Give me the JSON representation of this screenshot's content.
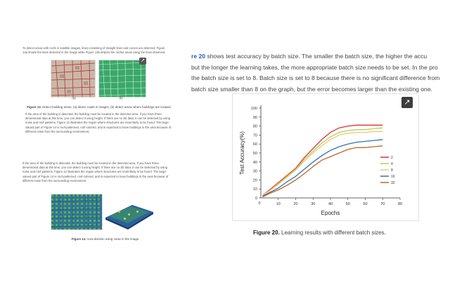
{
  "left_page": {
    "intro_lines": [
      "To detect areas with roofs in satellite images, lines consisting of straight lines and curves are detected. Figure",
      "13a shows the lines detected in the image while Figure 13b depicts the roofed areas using the lines observed."
    ],
    "fig13_sub_a": "(a)",
    "fig13_sub_b": "(b)",
    "fig13_caption_label": "Figure 13.",
    "fig13_caption_text": "Detect building areas: (a) detect roads in images; (b) detect areas where buildings are located.",
    "para1_lines": [
      "If the area of the building is detected, the building must be located in the detected area. If you have three-",
      "dimensional data at this time, you can detect it using height. If there are no 3D data, it can be detected by using",
      "noise and roof patterns. Figure 13 illustrates the region where structures are most likely to be found. The large-",
      "valued part of Figure 14 is roof-patterned, roof-colored, and is expected to have buildings in the area because of",
      "different noise from the surrounding environment."
    ],
    "para2_lines": [
      "If the area of the building is detected, the building must be located in the detected area. If you have three-",
      "dimensional data at this time, you can detect it using height. If there are no 3D data, it can be detected by using",
      "noise and roof patterns. Figure 13 illustrates the region where structures are most likely to be found. The large-",
      "valued part of Figure 14 is roof-patterned, roof-colored, and is expected to have buildings in the area because of",
      "different noise from the surrounding environment."
    ],
    "fig14_caption_label": "Figure 14.",
    "fig14_caption_text": "Area division using noise in the image."
  },
  "article": {
    "lines": [
      {
        "ref": "re 20",
        "text": " shows test accuracy by batch size. The smaller the batch size, the higher the accu"
      },
      {
        "ref": "",
        "text": "but the longer the learning takes, the more appropriate batch size needs to be set. In the pro"
      },
      {
        "ref": "",
        "text": " the batch size is set to 8. Batch size is set to 8 because there is no significant difference from"
      },
      {
        "ref": "",
        "text": "batch size smaller than 8 on the graph, but the error becomes larger than the existing one."
      }
    ],
    "figure_caption_label": "Figure 20.",
    "figure_caption_text": " Learning results with different batch sizes."
  },
  "chart_data": {
    "type": "line",
    "title": "",
    "xlabel": "Epochs",
    "ylabel": "Test Accuracy(%)",
    "xlim": [
      0,
      80
    ],
    "ylim": [
      0,
      100
    ],
    "xticks": [
      10,
      20,
      30,
      40,
      50,
      60,
      70,
      80
    ],
    "yticks": [
      0,
      10,
      20,
      30,
      40,
      50,
      60,
      70,
      80,
      90,
      100
    ],
    "grid": false,
    "legend_position": "lower-right",
    "x": [
      1,
      5,
      10,
      15,
      20,
      25,
      30,
      35,
      40,
      45,
      50,
      55,
      60,
      65,
      70
    ],
    "series": [
      {
        "name": "2",
        "color": "#e03030",
        "values": [
          3,
          9,
          17,
          25,
          33,
          45,
          55,
          65,
          73,
          78,
          80,
          81,
          81,
          81,
          81
        ]
      },
      {
        "name": "4",
        "color": "#b0d060",
        "values": [
          3,
          8,
          16,
          24,
          32,
          43,
          52,
          61,
          68,
          73,
          75,
          76,
          76,
          77,
          78
        ]
      },
      {
        "name": "8",
        "color": "#f0c870",
        "values": [
          3,
          8,
          15,
          23,
          31,
          41,
          50,
          58,
          65,
          70,
          72,
          73,
          73,
          74,
          74
        ]
      },
      {
        "name": "16",
        "color": "#3070c0",
        "values": [
          2,
          6,
          11,
          18,
          24,
          32,
          40,
          47,
          53,
          57,
          60,
          62,
          63,
          64,
          65
        ]
      },
      {
        "name": "32",
        "color": "#c06820",
        "values": [
          1,
          5,
          9,
          14,
          20,
          27,
          35,
          42,
          46,
          50,
          54,
          56,
          56,
          57,
          58
        ]
      }
    ]
  },
  "icons": {
    "external_link": "external-link-icon"
  }
}
